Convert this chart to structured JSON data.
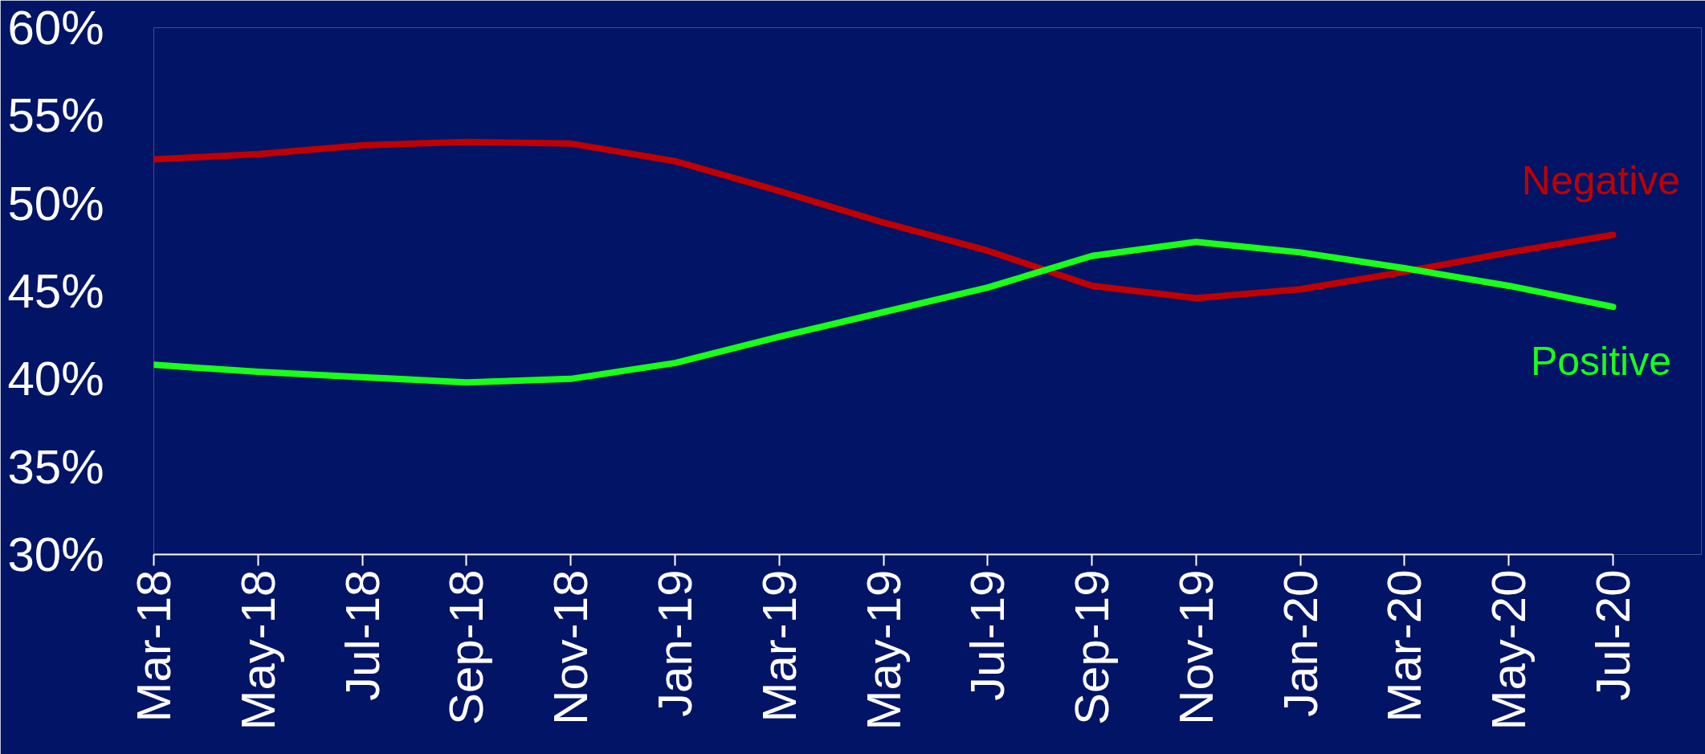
{
  "chart_data": {
    "type": "line",
    "categories": [
      "Mar-18",
      "May-18",
      "Jul-18",
      "Sep-18",
      "Nov-18",
      "Jan-19",
      "Mar-19",
      "May-19",
      "Jul-19",
      "Sep-19",
      "Nov-19",
      "Jan-20",
      "Mar-20",
      "May-20",
      "Jul-20"
    ],
    "series": [
      {
        "name": "Negative",
        "color": "#c00000",
        "values": [
          52.5,
          52.8,
          53.3,
          53.5,
          53.4,
          52.4,
          50.7,
          48.9,
          47.3,
          45.3,
          44.6,
          45.1,
          46.1,
          47.2,
          48.2
        ]
      },
      {
        "name": "Positive",
        "color": "#19ff19",
        "values": [
          40.8,
          40.4,
          40.1,
          39.8,
          40.0,
          40.9,
          42.4,
          43.8,
          45.2,
          47.0,
          47.8,
          47.2,
          46.3,
          45.3,
          44.1
        ]
      }
    ],
    "ylim": [
      30,
      60
    ],
    "yticks": [
      {
        "value": 30,
        "label": "30%"
      },
      {
        "value": 35,
        "label": "35%"
      },
      {
        "value": 40,
        "label": "40%"
      },
      {
        "value": 45,
        "label": "45%"
      },
      {
        "value": 50,
        "label": "50%"
      },
      {
        "value": 55,
        "label": "55%"
      },
      {
        "value": 60,
        "label": "60%"
      }
    ],
    "grid": false,
    "marker": "none",
    "line_style": "solid"
  }
}
